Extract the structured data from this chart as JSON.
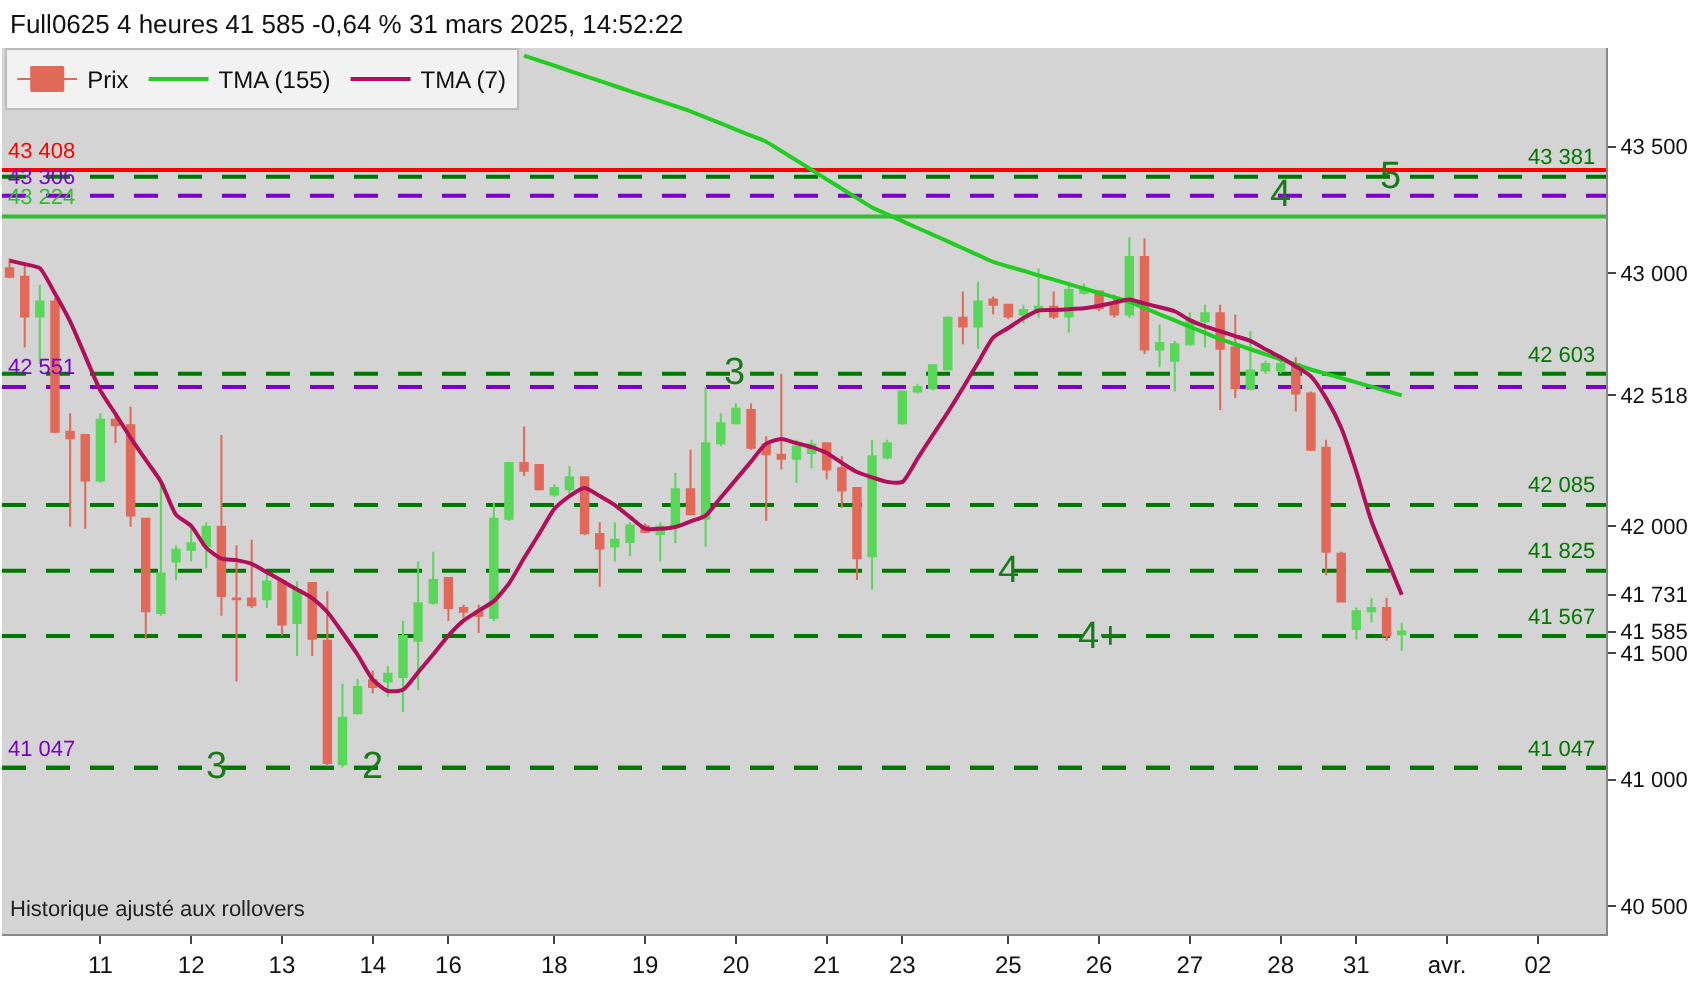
{
  "chart_data": {
    "type": "candlestick",
    "title": "Full0625 4 heures 41 585 -0,64 % 31 mars 2025, 14:52:22",
    "annotations": [
      "Historique ajusté aux rollovers",
      {
        "text": "3",
        "y": 41047
      },
      {
        "text": "2",
        "x": "14",
        "y": 41047
      },
      {
        "text": "3",
        "x": "20",
        "y": 42603
      },
      {
        "text": "4",
        "x": "25",
        "y": 41825
      },
      {
        "text": "4+",
        "x": "26",
        "y": 41567
      },
      {
        "text": "4",
        "x": "28",
        "y": 43306
      },
      {
        "text": "5",
        "y": 43381
      }
    ],
    "categories": [
      null,
      null,
      null,
      null,
      null,
      null,
      "11",
      null,
      null,
      null,
      null,
      null,
      "12",
      null,
      null,
      null,
      null,
      null,
      "13",
      null,
      null,
      null,
      null,
      null,
      "14",
      null,
      null,
      null,
      null,
      "16",
      null,
      null,
      null,
      null,
      null,
      null,
      "18",
      null,
      null,
      null,
      null,
      null,
      "19",
      null,
      null,
      null,
      null,
      null,
      "20",
      null,
      null,
      null,
      null,
      null,
      "21",
      null,
      null,
      null,
      null,
      "23",
      null,
      null,
      null,
      null,
      null,
      null,
      "25",
      null,
      null,
      null,
      null,
      null,
      "26",
      null,
      null,
      null,
      null,
      null,
      "27",
      null,
      null,
      null,
      null,
      null,
      "28",
      null,
      null,
      null,
      null,
      "31",
      null,
      null,
      null,
      null,
      null,
      "avr.",
      null,
      null,
      null,
      null,
      null,
      "02",
      null,
      null,
      null,
      null
    ],
    "series": [
      {
        "name": "Prix",
        "colors": [
          "#e0695a",
          "#e0695a",
          "#5ad65a",
          "#e0695a",
          "#e0695a",
          "#e0695a",
          "#5ad65a",
          "#e0695a",
          "#e0695a",
          "#e0695a",
          "#5ad65a",
          "#5ad65a",
          "#5ad65a",
          "#5ad65a",
          "#e0695a",
          "#e0695a",
          "#e0695a",
          "#5ad65a",
          "#e0695a",
          "#5ad65a",
          "#e0695a",
          "#e0695a",
          "#5ad65a",
          "#5ad65a",
          "#e0695a",
          "#5ad65a",
          "#5ad65a",
          "#5ad65a",
          "#5ad65a",
          "#e0695a",
          "#e0695a",
          "#e0695a",
          "#5ad65a",
          "#5ad65a",
          "#e0695a",
          "#e0695a",
          "#5ad65a",
          "#5ad65a",
          "#e0695a",
          "#e0695a",
          "#5ad65a",
          "#5ad65a",
          "#e0695a",
          "#5ad65a",
          "#5ad65a",
          "#e0695a",
          "#5ad65a",
          "#5ad65a",
          "#5ad65a",
          "#e0695a",
          "#e0695a",
          "#e0695a",
          "#5ad65a",
          "#5ad65a",
          "#e0695a",
          "#e0695a",
          "#e0695a",
          "#5ad65a",
          "#5ad65a",
          "#5ad65a",
          "#5ad65a",
          "#5ad65a",
          "#5ad65a",
          "#e0695a",
          "#5ad65a",
          "#e0695a",
          "#e0695a",
          "#5ad65a",
          "#5ad65a",
          "#e0695a",
          "#5ad65a",
          "#5ad65a",
          "#e0695a",
          "#e0695a",
          "#5ad65a",
          "#e0695a",
          "#5ad65a",
          "#5ad65a",
          "#5ad65a",
          "#5ad65a",
          "#e0695a",
          "#e0695a",
          "#5ad65a",
          "#5ad65a",
          "#5ad65a",
          "#e0695a",
          "#e0695a",
          "#e0695a",
          "#e0695a",
          "#5ad65a",
          "#5ad65a",
          "#e0695a",
          "#5ad65a",
          null,
          null,
          null,
          null,
          null,
          null,
          null,
          null,
          null,
          null,
          null,
          null,
          null
        ],
        "ohlc": [
          [
            43020,
            43059,
            42980,
            42986
          ],
          [
            42986,
            43032,
            42707,
            42829
          ],
          [
            42829,
            42954,
            42642,
            42889
          ],
          [
            42889,
            42902,
            42368,
            42374
          ],
          [
            42374,
            42447,
            41999,
            42348
          ],
          [
            42361,
            42361,
            41991,
            42181
          ],
          [
            42181,
            42447,
            42173,
            42421
          ],
          [
            42421,
            42447,
            42330,
            42400
          ],
          [
            42400,
            42473,
            41999,
            42043
          ],
          [
            42030,
            42030,
            41556,
            41665
          ],
          [
            41658,
            42173,
            41647,
            41814
          ],
          [
            41861,
            41926,
            41788,
            41908
          ],
          [
            41908,
            41991,
            41861,
            41934
          ],
          [
            41923,
            42017,
            41835,
            41999
          ],
          [
            41999,
            42361,
            41647,
            41725
          ],
          [
            41715,
            41926,
            41387,
            41712
          ],
          [
            41715,
            41947,
            41678,
            41689
          ],
          [
            41712,
            41809,
            41678,
            41783
          ],
          [
            41783,
            41788,
            41569,
            41613
          ],
          [
            41619,
            41783,
            41488,
            41749
          ],
          [
            41777,
            41777,
            41488,
            41556
          ],
          [
            41548,
            41744,
            41053,
            41066
          ],
          [
            41061,
            41379,
            41048,
            41244
          ],
          [
            41262,
            41397,
            41257,
            41366
          ],
          [
            41392,
            41431,
            41340,
            41366
          ],
          [
            41387,
            41449,
            41327,
            41418
          ],
          [
            41405,
            41626,
            41267,
            41567
          ],
          [
            41548,
            41861,
            41353,
            41697
          ],
          [
            41699,
            41900,
            41691,
            41788
          ],
          [
            41796,
            41796,
            41626,
            41678
          ],
          [
            41678,
            41691,
            41639,
            41663
          ],
          [
            41663,
            41691,
            41579,
            41647
          ],
          [
            41639,
            42095,
            41626,
            42030
          ],
          [
            42030,
            42251,
            42022,
            42251
          ],
          [
            42251,
            42395,
            42199,
            42220
          ],
          [
            42243,
            42243,
            42142,
            42147
          ],
          [
            42126,
            42168,
            42116,
            42152
          ],
          [
            42147,
            42238,
            42121,
            42194
          ],
          [
            42194,
            42194,
            41965,
            41973
          ],
          [
            41970,
            42017,
            41762,
            41913
          ],
          [
            41921,
            42017,
            41861,
            41947
          ],
          [
            41939,
            42017,
            41882,
            42004
          ],
          [
            42001,
            42012,
            41978,
            41978
          ],
          [
            41970,
            42017,
            41861,
            41999
          ],
          [
            41999,
            42212,
            41934,
            42147
          ],
          [
            42147,
            42303,
            42043,
            42048
          ],
          [
            42030,
            42551,
            41921,
            42329
          ],
          [
            42329,
            42447,
            42316,
            42408
          ],
          [
            42408,
            42486,
            42402,
            42465
          ],
          [
            42460,
            42486,
            42303,
            42311
          ],
          [
            42324,
            42356,
            42022,
            42285
          ],
          [
            42283,
            42603,
            42225,
            42267
          ],
          [
            42267,
            42342,
            42173,
            42316
          ],
          [
            42290,
            42342,
            42230,
            42324
          ],
          [
            42329,
            42329,
            42186,
            42225
          ],
          [
            42230,
            42277,
            42074,
            42142
          ],
          [
            42152,
            42152,
            41788,
            41874
          ],
          [
            41882,
            42342,
            41751,
            42277
          ],
          [
            42272,
            42342,
            42264,
            42329
          ],
          [
            42408,
            42533,
            42402,
            42533
          ],
          [
            42533,
            42564,
            42525,
            42551
          ],
          [
            42546,
            42637,
            42538,
            42637
          ],
          [
            42621,
            42830,
            42616,
            42824
          ],
          [
            42824,
            42928,
            42720,
            42790
          ],
          [
            42790,
            42967,
            42702,
            42889
          ],
          [
            42897,
            42908,
            42837,
            42876
          ],
          [
            42876,
            42876,
            42819,
            42829
          ],
          [
            42837,
            42876,
            42803,
            42855
          ],
          [
            42855,
            43019,
            42824,
            42868
          ],
          [
            42868,
            42928,
            42819,
            42829
          ],
          [
            42829,
            42967,
            42767,
            42934
          ],
          [
            42923,
            42960,
            42915,
            42934
          ],
          [
            42928,
            42928,
            42850,
            42863
          ],
          [
            42876,
            42915,
            42824,
            42837
          ],
          [
            42837,
            43142,
            42824,
            43064
          ],
          [
            43064,
            43137,
            42681,
            42699
          ],
          [
            42699,
            42798,
            42629,
            42725
          ],
          [
            42655,
            42733,
            42533,
            42720
          ],
          [
            42720,
            42845,
            42715,
            42811
          ],
          [
            42811,
            42876,
            42707,
            42842
          ],
          [
            42842,
            42876,
            42460,
            42702
          ],
          [
            42707,
            42837,
            42507,
            42546
          ],
          [
            42543,
            42772,
            42538,
            42616
          ],
          [
            42616,
            42655,
            42603,
            42642
          ],
          [
            42616,
            42668,
            42603,
            42642
          ],
          [
            42642,
            42668,
            42454,
            42525
          ],
          [
            42525,
            42533,
            42298,
            42303
          ],
          [
            42311,
            42342,
            41808,
            41900
          ],
          [
            41892,
            41900,
            41704,
            41704
          ],
          [
            41595,
            41680,
            41553,
            41665
          ],
          [
            41665,
            41717,
            41621,
            41678
          ],
          [
            41678,
            41717,
            41548,
            41569
          ],
          [
            41574,
            41621,
            41509,
            41585
          ],
          null,
          null,
          null,
          null,
          null,
          null,
          null,
          null,
          null,
          null,
          null,
          null,
          null
        ]
      },
      {
        "name": "TMA (155)",
        "type": "line",
        "color": "#22cc22",
        "values": [
          null,
          null,
          null,
          null,
          null,
          null,
          null,
          null,
          null,
          null,
          null,
          null,
          null,
          null,
          null,
          null,
          null,
          null,
          null,
          null,
          null,
          null,
          null,
          null,
          null,
          null,
          null,
          null,
          null,
          null,
          null,
          null,
          null,
          null,
          43860,
          43840,
          43820,
          43800,
          43780,
          43760,
          43740,
          43720,
          43700,
          43680,
          43660,
          43640,
          43616,
          43592,
          43568,
          43544,
          43520,
          43483,
          43446,
          43409,
          43371,
          43334,
          43297,
          43260,
          43233,
          43206,
          43179,
          43153,
          43126,
          43099,
          43072,
          43045,
          43027,
          43010,
          42992,
          42975,
          42957,
          42940,
          42922,
          42905,
          42887,
          42863,
          42838,
          42814,
          42789,
          42765,
          42740,
          42720,
          42700,
          42680,
          42660,
          42640,
          42620,
          42603,
          42586,
          42569,
          42552,
          42535,
          42518,
          null,
          null,
          null,
          null,
          null,
          null,
          null,
          null,
          null,
          null,
          null,
          null,
          null
        ]
      },
      {
        "name": "TMA (7)",
        "type": "line",
        "color": "#b0105a",
        "values": [
          43050,
          43036,
          43020,
          42920,
          42810,
          42673,
          42537,
          42444,
          42350,
          42263,
          42177,
          42046,
          42002,
          41915,
          41873,
          41867,
          41852,
          41819,
          41785,
          41751,
          41717,
          41662,
          41580,
          41493,
          41395,
          41350,
          41355,
          41424,
          41495,
          41569,
          41628,
          41667,
          41705,
          41774,
          41875,
          41971,
          42069,
          42120,
          42152,
          42120,
          42084,
          42037,
          41991,
          41991,
          41998,
          42020,
          42043,
          42114,
          42185,
          42256,
          42327,
          42345,
          42329,
          42313,
          42290,
          42251,
          42215,
          42194,
          42176,
          42176,
          42268,
          42360,
          42451,
          42547,
          42647,
          42746,
          42784,
          42823,
          42853,
          42855,
          42858,
          42862,
          42872,
          42884,
          42897,
          42881,
          42866,
          42850,
          42815,
          42790,
          42771,
          42752,
          42733,
          42700,
          42668,
          42632,
          42593,
          42507,
          42390,
          42217,
          42020,
          41875,
          41730,
          null,
          null,
          null,
          null,
          null,
          null,
          null,
          null,
          null,
          null,
          null,
          null,
          null
        ]
      }
    ],
    "ref_lines": [
      {
        "axis": "y",
        "value": 43408,
        "label": "43 408",
        "color": "#ff0000",
        "line_style": "solid"
      },
      {
        "axis": "y",
        "value": 43306,
        "label": "43 306",
        "color": "#7b00cc",
        "line_style": "dashed"
      },
      {
        "axis": "y",
        "value": 43224,
        "label": "43 224",
        "color": "#33bb33",
        "line_style": "solid"
      },
      {
        "axis": "y",
        "value": 42551,
        "label": "42 551",
        "color": "#7b00cc",
        "line_style": "dashed"
      },
      {
        "axis": "y",
        "value": 41047,
        "label": "41 047",
        "color": "#7b00cc",
        "line_style": "dashed"
      },
      {
        "axis": "y",
        "value": 43381,
        "label": "43 381",
        "color": "#007700",
        "line_style": "dashed"
      },
      {
        "axis": "y",
        "value": 42603,
        "label": "42 603",
        "color": "#007700",
        "line_style": "dashed"
      },
      {
        "axis": "y",
        "value": 42085,
        "label": "42 085",
        "color": "#007700",
        "line_style": "dashed"
      },
      {
        "axis": "y",
        "value": 41825,
        "label": "41 825",
        "color": "#007700",
        "line_style": "dashed"
      },
      {
        "axis": "y",
        "value": 41567,
        "label": "41 567",
        "color": "#007700",
        "line_style": "dashed"
      },
      {
        "axis": "y",
        "value": 41047,
        "label": "41 047",
        "color": "#007700",
        "line_style": "dashed"
      }
    ],
    "ylim": [
      40390,
      43890
    ],
    "yticks": [
      {
        "value": 40500,
        "label": "40 500"
      },
      {
        "value": 41000,
        "label": "41 000"
      },
      {
        "value": 41500,
        "label": "41 500"
      },
      {
        "value": 41585,
        "label": "41 585"
      },
      {
        "value": 41731,
        "label": "41 731"
      },
      {
        "value": 42000,
        "label": "42 000"
      },
      {
        "value": 42518,
        "label": "42 518"
      },
      {
        "value": 43000,
        "label": "43 000"
      },
      {
        "value": 43500,
        "label": "43 500"
      }
    ],
    "grid": false,
    "legend": "top left"
  }
}
